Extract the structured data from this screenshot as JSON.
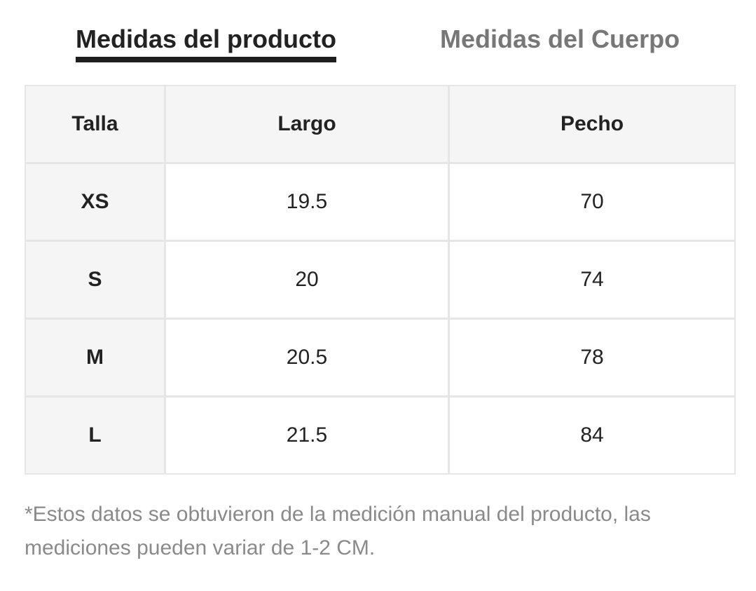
{
  "tabs": [
    {
      "label": "Medidas del producto",
      "active": true
    },
    {
      "label": "Medidas del Cuerpo",
      "active": false
    }
  ],
  "table": {
    "headers": [
      "Talla",
      "Largo",
      "Pecho"
    ],
    "rows": [
      [
        "XS",
        "19.5",
        "70"
      ],
      [
        "S",
        "20",
        "74"
      ],
      [
        "M",
        "20.5",
        "78"
      ],
      [
        "L",
        "21.5",
        "84"
      ]
    ]
  },
  "footnote": "*Estos datos se obtuvieron de la medición manual del producto, las mediciones pueden variar de 1-2 CM.",
  "colors": {
    "active_tab": "#222222",
    "inactive_tab": "#777777",
    "header_bg": "#f5f5f5",
    "border": "#e6e6e6",
    "footnote": "#8a8a8a"
  }
}
